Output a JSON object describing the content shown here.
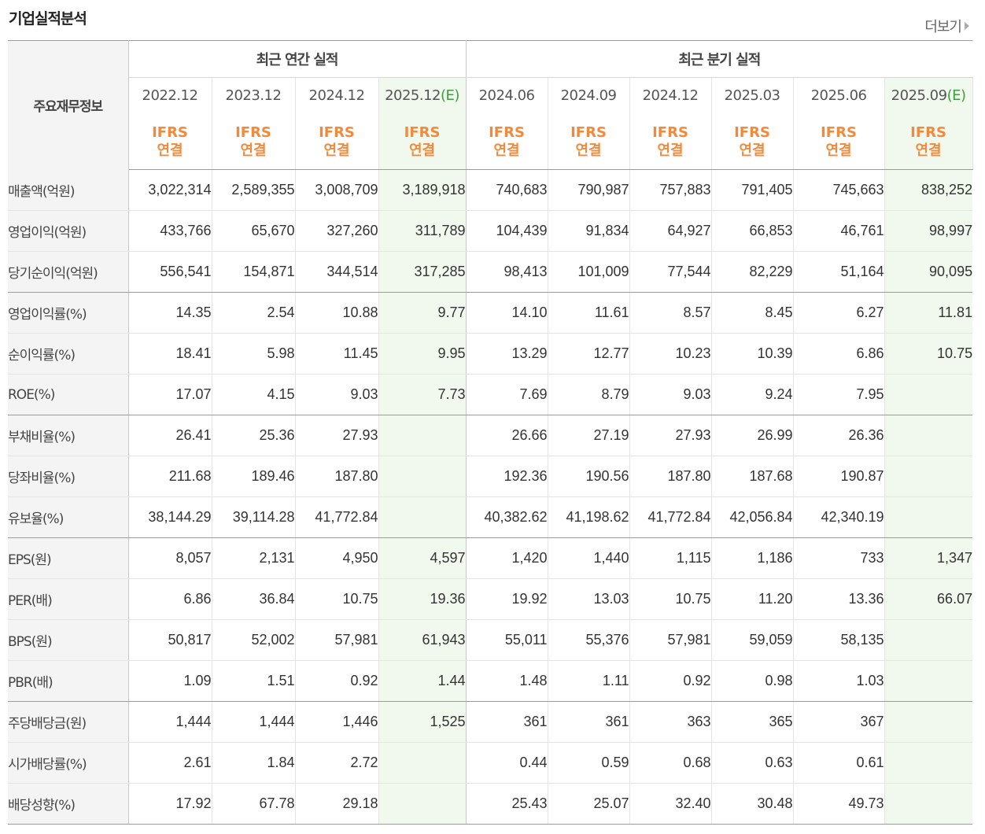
{
  "title": "기업실적분석",
  "more_label": "더보기",
  "corner_label": "주요재무정보",
  "groups": {
    "annual": "최근 연간 실적",
    "quarter": "최근 분기 실적"
  },
  "periods": [
    "2022.12",
    "2023.12",
    "2024.12",
    "2025.12",
    "2024.06",
    "2024.09",
    "2024.12",
    "2025.03",
    "2025.06",
    "2025.09"
  ],
  "estimate_mark": "(E)",
  "ifrs_top": "IFRS",
  "ifrs_bottom": "연결",
  "rows": [
    {
      "label": "매출액(억원)",
      "values": [
        "3,022,314",
        "2,589,355",
        "3,008,709",
        "3,189,918",
        "740,683",
        "790,987",
        "757,883",
        "791,405",
        "745,663",
        "838,252"
      ]
    },
    {
      "label": "영업이익(억원)",
      "values": [
        "433,766",
        "65,670",
        "327,260",
        "311,789",
        "104,439",
        "91,834",
        "64,927",
        "66,853",
        "46,761",
        "98,997"
      ]
    },
    {
      "label": "당기순이익(억원)",
      "values": [
        "556,541",
        "154,871",
        "344,514",
        "317,285",
        "98,413",
        "101,009",
        "77,544",
        "82,229",
        "51,164",
        "90,095"
      ]
    },
    {
      "label": "영업이익률(%)",
      "values": [
        "14.35",
        "2.54",
        "10.88",
        "9.77",
        "14.10",
        "11.61",
        "8.57",
        "8.45",
        "6.27",
        "11.81"
      ]
    },
    {
      "label": "순이익률(%)",
      "values": [
        "18.41",
        "5.98",
        "11.45",
        "9.95",
        "13.29",
        "12.77",
        "10.23",
        "10.39",
        "6.86",
        "10.75"
      ]
    },
    {
      "label": "ROE(%)",
      "values": [
        "17.07",
        "4.15",
        "9.03",
        "7.73",
        "7.69",
        "8.79",
        "9.03",
        "9.24",
        "7.95",
        ""
      ]
    },
    {
      "label": "부채비율(%)",
      "values": [
        "26.41",
        "25.36",
        "27.93",
        "",
        "26.66",
        "27.19",
        "27.93",
        "26.99",
        "26.36",
        ""
      ]
    },
    {
      "label": "당좌비율(%)",
      "values": [
        "211.68",
        "189.46",
        "187.80",
        "",
        "192.36",
        "190.56",
        "187.80",
        "187.68",
        "190.87",
        ""
      ]
    },
    {
      "label": "유보율(%)",
      "values": [
        "38,144.29",
        "39,114.28",
        "41,772.84",
        "",
        "40,382.62",
        "41,198.62",
        "41,772.84",
        "42,056.84",
        "42,340.19",
        ""
      ]
    },
    {
      "label": "EPS(원)",
      "values": [
        "8,057",
        "2,131",
        "4,950",
        "4,597",
        "1,420",
        "1,440",
        "1,115",
        "1,186",
        "733",
        "1,347"
      ]
    },
    {
      "label": "PER(배)",
      "values": [
        "6.86",
        "36.84",
        "10.75",
        "19.36",
        "19.92",
        "13.03",
        "10.75",
        "11.20",
        "13.36",
        "66.07"
      ]
    },
    {
      "label": "BPS(원)",
      "values": [
        "50,817",
        "52,002",
        "57,981",
        "61,943",
        "55,011",
        "55,376",
        "57,981",
        "59,059",
        "58,135",
        ""
      ]
    },
    {
      "label": "PBR(배)",
      "values": [
        "1.09",
        "1.51",
        "0.92",
        "1.44",
        "1.48",
        "1.11",
        "0.92",
        "0.98",
        "1.03",
        ""
      ]
    },
    {
      "label": "주당배당금(원)",
      "values": [
        "1,444",
        "1,444",
        "1,446",
        "1,525",
        "361",
        "361",
        "363",
        "365",
        "367",
        ""
      ]
    },
    {
      "label": "시가배당률(%)",
      "values": [
        "2.61",
        "1.84",
        "2.72",
        "",
        "0.44",
        "0.59",
        "0.68",
        "0.63",
        "0.61",
        ""
      ]
    },
    {
      "label": "배당성향(%)",
      "values": [
        "17.92",
        "67.78",
        "29.18",
        "",
        "25.43",
        "25.07",
        "32.40",
        "30.48",
        "49.73",
        ""
      ]
    }
  ]
}
